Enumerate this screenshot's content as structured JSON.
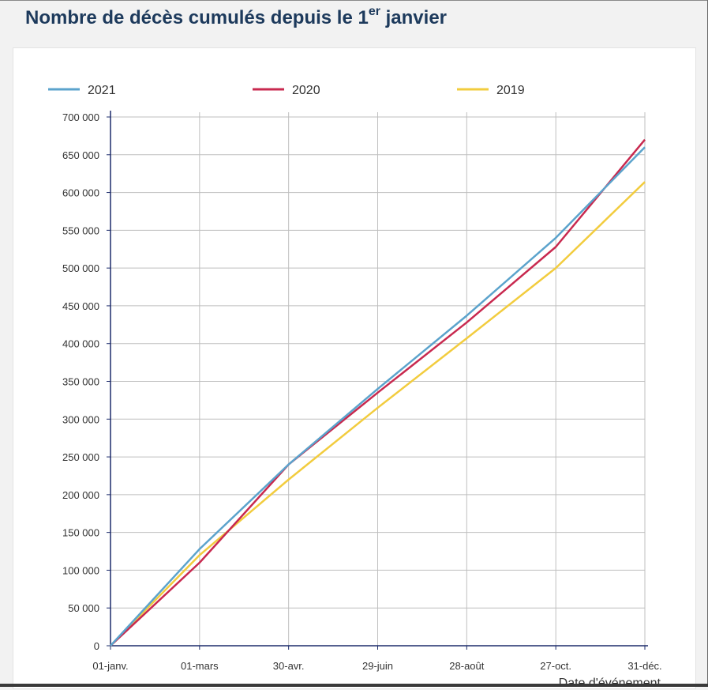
{
  "page": {
    "title_main": "Nombre de décès cumulés depuis le 1",
    "title_sup": "er",
    "title_end": " janvier"
  },
  "chart_data": {
    "type": "line",
    "title": "Nombre de décès cumulés depuis le 1er janvier",
    "xlabel": "Date d'événement",
    "ylabel": "",
    "x_ticks": [
      "01-janv.",
      "01-mars",
      "30-avr.",
      "29-juin",
      "28-août",
      "27-oct.",
      "31-déc."
    ],
    "ylim": [
      0,
      700000
    ],
    "y_ticks": [
      0,
      50000,
      100000,
      150000,
      200000,
      250000,
      300000,
      350000,
      400000,
      450000,
      500000,
      550000,
      600000,
      650000,
      700000
    ],
    "y_tick_labels": [
      "0",
      "50 000",
      "100 000",
      "150 000",
      "200 000",
      "250 000",
      "300 000",
      "350 000",
      "400 000",
      "450 000",
      "500 000",
      "550 000",
      "600 000",
      "650 000",
      "700 000"
    ],
    "grid": true,
    "legend_position": "top",
    "x": [
      "01-janv.",
      "01-mars",
      "30-avr.",
      "29-juin",
      "28-août",
      "27-oct.",
      "31-déc."
    ],
    "series": [
      {
        "name": "2021",
        "color": "#5ba3cc",
        "values": [
          0,
          128000,
          240000,
          340000,
          437000,
          540000,
          660000
        ]
      },
      {
        "name": "2020",
        "color": "#c8294f",
        "values": [
          0,
          110000,
          240000,
          335000,
          428000,
          528000,
          670000
        ]
      },
      {
        "name": "2019",
        "color": "#f2cc3e",
        "values": [
          0,
          120000,
          220000,
          315000,
          407000,
          500000,
          614000
        ]
      }
    ]
  }
}
